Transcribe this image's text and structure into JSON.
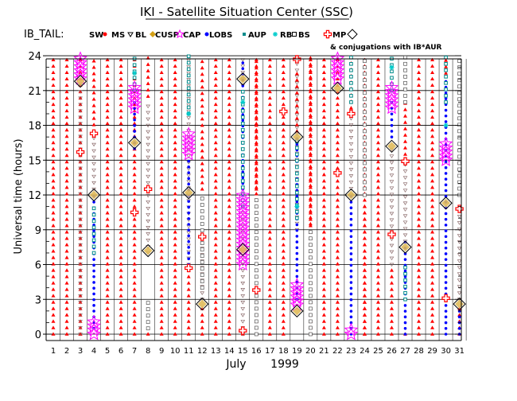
{
  "chart_data": {
    "type": "scatter",
    "title": "IKI - Satellite Situation Center (SSC)",
    "row_label": "IB_TAIL:",
    "ylabel": "Universal time (hours)",
    "xlabel": "July",
    "year": "1999",
    "xlim": [
      1,
      31
    ],
    "ylim": [
      0,
      24
    ],
    "x_ticks": [
      1,
      2,
      3,
      4,
      5,
      6,
      7,
      8,
      9,
      10,
      11,
      12,
      13,
      14,
      15,
      16,
      17,
      18,
      19,
      20,
      21,
      22,
      23,
      24,
      25,
      26,
      27,
      28,
      29,
      30,
      31
    ],
    "y_ticks": [
      0,
      3,
      6,
      9,
      12,
      15,
      18,
      21,
      24
    ],
    "legend": [
      {
        "label": "SW",
        "marker": "red-dot",
        "color": "#ff0000"
      },
      {
        "label": "MS",
        "marker": "down-triangle",
        "color": "#000000"
      },
      {
        "label": "BL",
        "marker": "diamond",
        "color": "#d4a017"
      },
      {
        "label": "CUSP",
        "marker": "star",
        "color": "#ff00ff"
      },
      {
        "label": "CAP",
        "marker": "blue-dot",
        "color": "#0000ff"
      },
      {
        "label": "LOBS",
        "marker": "cyan-square",
        "color": "#008b8b"
      },
      {
        "label": "AUP",
        "marker": "asterisk",
        "color": "#00cccc"
      },
      {
        "label": "RB",
        "marker": "open-square",
        "color": "#000000"
      },
      {
        "label": "BS",
        "marker": "red-cross",
        "color": "#ff0000"
      },
      {
        "label": "MP",
        "marker": "open-diamond",
        "color": "#000000"
      }
    ],
    "legend_note": "& conjugations with IB*AUR",
    "colors": {
      "sw": "#ff0000",
      "ms": "#8b6b6b",
      "bl": "#d4a017",
      "cusp": "#ff00ff",
      "cap": "#0000ff",
      "lobs": "#008b8b",
      "aup": "#00cccc",
      "rb": "#555555",
      "bs": "#ff0000",
      "mp": "#000000"
    },
    "regions": {
      "sw": [
        1,
        2,
        3,
        5,
        6,
        7,
        9,
        10,
        13,
        14,
        16,
        17,
        18,
        20,
        21,
        22,
        24,
        25,
        28,
        29
      ],
      "ms_intervals": [
        {
          "day": 3,
          "from": 0,
          "to": 21.5
        },
        {
          "day": 4,
          "from": 12.5,
          "to": 17
        },
        {
          "day": 8,
          "from": 7,
          "to": 20
        },
        {
          "day": 11,
          "from": 6,
          "to": 24
        },
        {
          "day": 12,
          "from": 3,
          "to": 7.5
        },
        {
          "day": 15,
          "from": 0,
          "to": 24
        },
        {
          "day": 19,
          "from": 9,
          "to": 24
        },
        {
          "day": 23,
          "from": 12,
          "to": 19
        },
        {
          "day": 26,
          "from": 6,
          "to": 16
        },
        {
          "day": 27,
          "from": 8,
          "to": 15
        },
        {
          "day": 31,
          "from": 3,
          "to": 11
        }
      ],
      "cap_intervals": [
        {
          "day": 4,
          "from": 0.5,
          "to": 12
        },
        {
          "day": 7,
          "from": 16,
          "to": 20
        },
        {
          "day": 11,
          "from": 6,
          "to": 15
        },
        {
          "day": 15,
          "from": 12,
          "to": 23.5
        },
        {
          "day": 19,
          "from": 3,
          "to": 17
        },
        {
          "day": 23,
          "from": 0,
          "to": 12
        },
        {
          "day": 26,
          "from": 17,
          "to": 20
        },
        {
          "day": 27,
          "from": 0,
          "to": 8
        },
        {
          "day": 30,
          "from": 0,
          "to": 22
        },
        {
          "day": 31,
          "from": 0,
          "to": 2
        }
      ],
      "lobs_intervals": [
        {
          "day": 4,
          "from": 7,
          "to": 11
        },
        {
          "day": 7,
          "from": 21,
          "to": 24
        },
        {
          "day": 11,
          "from": 19,
          "to": 24
        },
        {
          "day": 15,
          "from": 11,
          "to": 21
        },
        {
          "day": 19,
          "from": 10,
          "to": 17
        },
        {
          "day": 23,
          "from": 20,
          "to": 24
        },
        {
          "day": 26,
          "from": 21,
          "to": 24
        },
        {
          "day": 27,
          "from": 3,
          "to": 6
        },
        {
          "day": 30,
          "from": 20,
          "to": 24
        }
      ],
      "aup_points": [
        {
          "day": 7,
          "y": 22.5
        },
        {
          "day": 11,
          "y": 19
        },
        {
          "day": 15,
          "y": 20
        },
        {
          "day": 19,
          "y": 11
        },
        {
          "day": 26,
          "y": 23
        },
        {
          "day": 30,
          "y": 18
        }
      ],
      "rb_intervals": [
        {
          "day": 8,
          "from": 0.5,
          "to": 3
        },
        {
          "day": 12,
          "from": 4,
          "to": 12
        },
        {
          "day": 16,
          "from": 0,
          "to": 12
        },
        {
          "day": 20,
          "from": 0,
          "to": 9
        },
        {
          "day": 24,
          "from": 12,
          "to": 24
        },
        {
          "day": 27,
          "from": 20,
          "to": 24
        },
        {
          "day": 31,
          "from": 12,
          "to": 24
        }
      ],
      "cusp_intervals": [
        {
          "day": 3,
          "from": 22,
          "to": 24
        },
        {
          "day": 4,
          "from": 0,
          "to": 1.2
        },
        {
          "day": 7,
          "from": 19.5,
          "to": 21.5
        },
        {
          "day": 11,
          "from": 15.5,
          "to": 17.5
        },
        {
          "day": 15,
          "from": 6,
          "to": 12
        },
        {
          "day": 19,
          "from": 2.5,
          "to": 4.5
        },
        {
          "day": 22,
          "from": 22,
          "to": 24
        },
        {
          "day": 23,
          "from": 0,
          "to": 0.5
        },
        {
          "day": 26,
          "from": 19.5,
          "to": 21.5
        },
        {
          "day": 30,
          "from": 15,
          "to": 16.5
        }
      ],
      "bs_points": [
        {
          "day": 3,
          "y": 15.7
        },
        {
          "day": 4,
          "y": 17.3
        },
        {
          "day": 7,
          "y": 10.5
        },
        {
          "day": 8,
          "y": 12.5
        },
        {
          "day": 11,
          "y": 5.7
        },
        {
          "day": 12,
          "y": 8.4
        },
        {
          "day": 15,
          "y": 0.3
        },
        {
          "day": 16,
          "y": 3.8
        },
        {
          "day": 18,
          "y": 19.2
        },
        {
          "day": 19,
          "y": 23.7
        },
        {
          "day": 22,
          "y": 13.9
        },
        {
          "day": 23,
          "y": 19.0
        },
        {
          "day": 26,
          "y": 8.6
        },
        {
          "day": 27,
          "y": 14.9
        },
        {
          "day": 30,
          "y": 3.1
        },
        {
          "day": 31,
          "y": 10.8
        }
      ],
      "mp_points": [
        {
          "day": 3,
          "y": 21.8
        },
        {
          "day": 4,
          "y": 12.0
        },
        {
          "day": 7,
          "y": 16.5
        },
        {
          "day": 8,
          "y": 7.2
        },
        {
          "day": 11,
          "y": 12.2
        },
        {
          "day": 12,
          "y": 2.6
        },
        {
          "day": 15,
          "y": 22.0
        },
        {
          "day": 15,
          "y": 7.3
        },
        {
          "day": 19,
          "y": 17.0
        },
        {
          "day": 19,
          "y": 2.0
        },
        {
          "day": 22,
          "y": 21.2
        },
        {
          "day": 23,
          "y": 12.0
        },
        {
          "day": 26,
          "y": 16.2
        },
        {
          "day": 27,
          "y": 7.5
        },
        {
          "day": 30,
          "y": 11.3
        },
        {
          "day": 31,
          "y": 2.6
        }
      ]
    }
  }
}
